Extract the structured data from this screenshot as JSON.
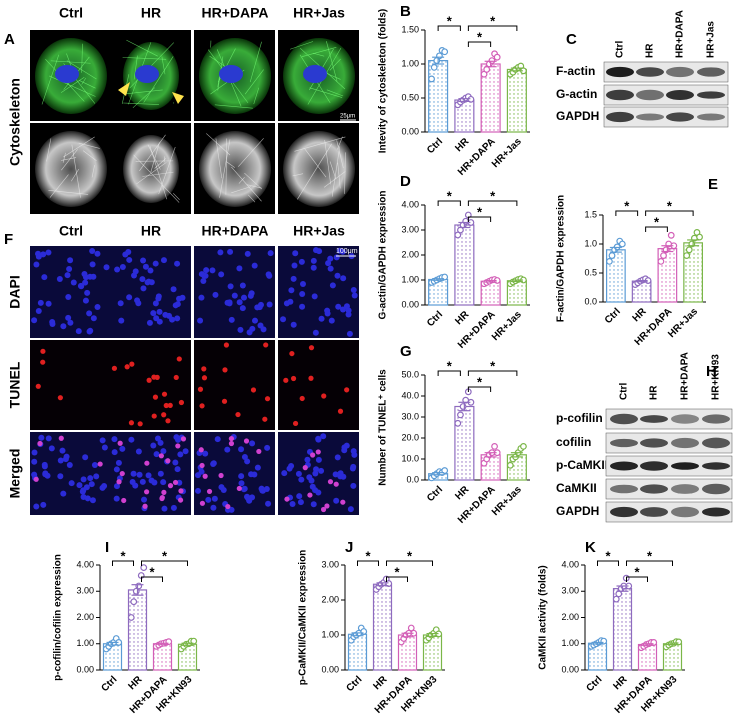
{
  "panel_A": {
    "label": "A",
    "columns": [
      "Ctrl",
      "HR",
      "HR+DAPA",
      "HR+Jas"
    ],
    "row_label": "Cytoskeleton",
    "scale": "25μm"
  },
  "panel_F": {
    "label": "F",
    "columns": [
      "Ctrl",
      "HR",
      "HR+DAPA",
      "HR+Jas"
    ],
    "rows": [
      "DAPI",
      "TUNEL",
      "Merged"
    ],
    "scale": "100μm"
  },
  "panel_C": {
    "label": "C",
    "lanes": [
      "Ctrl",
      "HR",
      "HR+DAPA",
      "HR+Jas"
    ],
    "bands": [
      "F-actin",
      "G-actin",
      "GAPDH"
    ]
  },
  "panel_H": {
    "label": "H",
    "lanes": [
      "Ctrl",
      "HR",
      "HR+DAPA",
      "HR+KN93"
    ],
    "bands": [
      "p-cofilin",
      "cofilin",
      "p-CaMKII",
      "CaMKII",
      "GAPDH"
    ]
  },
  "chart_data": [
    {
      "type": "bar",
      "panel": "B",
      "ylabel": "Intevity of cytoskeleton (folds)",
      "categories": [
        "Ctrl",
        "HR",
        "HR+DAPA",
        "HR+Jas"
      ],
      "colors": [
        "#5b9bd5",
        "#8e6bbf",
        "#d35fb7",
        "#7ab648"
      ],
      "values": [
        1.05,
        0.47,
        1.0,
        0.92
      ],
      "errors": [
        0.05,
        0.02,
        0.04,
        0.02
      ],
      "points": [
        [
          0.78,
          0.95,
          1.05,
          1.12,
          1.2,
          1.18
        ],
        [
          0.4,
          0.44,
          0.47,
          0.5,
          0.52,
          0.48
        ],
        [
          0.85,
          0.92,
          1.0,
          1.05,
          1.15,
          1.1
        ],
        [
          0.85,
          0.88,
          0.92,
          0.95,
          0.97,
          0.9
        ]
      ],
      "ylim": [
        0,
        1.5
      ],
      "yticks": [
        {
          "value": 0,
          "label": "0.00"
        },
        {
          "value": 0.5,
          "label": "0.50"
        },
        {
          "value": 1,
          "label": "1.00"
        },
        {
          "value": 1.5,
          "label": "1.50"
        }
      ],
      "significance": [
        "*",
        "*",
        "*"
      ]
    },
    {
      "type": "bar",
      "panel": "D",
      "ylabel": "G-actin/GAPDH expression",
      "categories": [
        "Ctrl",
        "HR",
        "HR+DAPA",
        "HR+Jas"
      ],
      "colors": [
        "#5b9bd5",
        "#8e6bbf",
        "#d35fb7",
        "#7ab648"
      ],
      "values": [
        1.02,
        3.2,
        0.95,
        0.97
      ],
      "errors": [
        0.03,
        0.1,
        0.03,
        0.03
      ],
      "points": [
        [
          0.9,
          0.95,
          1.0,
          1.05,
          1.1,
          1.12
        ],
        [
          2.8,
          3.0,
          3.2,
          3.35,
          3.6,
          3.3
        ],
        [
          0.85,
          0.9,
          0.95,
          1.0,
          1.02,
          0.98
        ],
        [
          0.85,
          0.92,
          0.97,
          1.02,
          1.05,
          1.0
        ]
      ],
      "ylim": [
        0,
        4
      ],
      "yticks": [
        {
          "value": 0,
          "label": "0.00"
        },
        {
          "value": 1,
          "label": "1.00"
        },
        {
          "value": 2,
          "label": "2.00"
        },
        {
          "value": 3,
          "label": "3.00"
        },
        {
          "value": 4,
          "label": "4.00"
        }
      ],
      "significance": [
        "*",
        "*",
        "*"
      ]
    },
    {
      "type": "bar",
      "panel": "E",
      "ylabel": "F-actin/GAPDH expression",
      "categories": [
        "Ctrl",
        "HR",
        "HR+DAPA",
        "HR+Jas"
      ],
      "colors": [
        "#5b9bd5",
        "#8e6bbf",
        "#d35fb7",
        "#7ab648"
      ],
      "values": [
        0.9,
        0.36,
        0.92,
        1.02
      ],
      "errors": [
        0.04,
        0.01,
        0.05,
        0.05
      ],
      "points": [
        [
          0.7,
          0.8,
          0.9,
          0.95,
          1.05,
          1.0
        ],
        [
          0.3,
          0.33,
          0.36,
          0.38,
          0.4,
          0.37
        ],
        [
          0.7,
          0.8,
          0.9,
          1.0,
          1.15,
          0.97
        ],
        [
          0.8,
          0.9,
          1.0,
          1.1,
          1.2,
          1.12
        ]
      ],
      "ylim": [
        0,
        1.5
      ],
      "yticks": [
        {
          "value": 0,
          "label": "0.0"
        },
        {
          "value": 0.5,
          "label": "0.5"
        },
        {
          "value": 1,
          "label": "1.0"
        },
        {
          "value": 1.5,
          "label": "1.5"
        }
      ],
      "significance": [
        "*",
        "*",
        "*"
      ]
    },
    {
      "type": "bar",
      "panel": "G",
      "ylabel": "Number of TUNEL⁺ cells",
      "categories": [
        "Ctrl",
        "HR",
        "HR+DAPA",
        "HR+Jas"
      ],
      "colors": [
        "#5b9bd5",
        "#8e6bbf",
        "#d35fb7",
        "#7ab648"
      ],
      "values": [
        3,
        35,
        12,
        12
      ],
      "errors": [
        0.5,
        2,
        1,
        1
      ],
      "points": [
        [
          1,
          2,
          3,
          4,
          3.5,
          4.5
        ],
        [
          27,
          31,
          35,
          38,
          42,
          37
        ],
        [
          8,
          10,
          12,
          13,
          16,
          13
        ],
        [
          7,
          10,
          11,
          13,
          15,
          16
        ]
      ],
      "ylim": [
        0,
        50
      ],
      "yticks": [
        {
          "value": 0,
          "label": "0.0"
        },
        {
          "value": 10,
          "label": "10.0"
        },
        {
          "value": 20,
          "label": "20.0"
        },
        {
          "value": 30,
          "label": "30.0"
        },
        {
          "value": 40,
          "label": "40.0"
        },
        {
          "value": 50,
          "label": "50.0"
        }
      ],
      "significance": [
        "*",
        "*",
        "*"
      ]
    },
    {
      "type": "bar",
      "panel": "I",
      "ylabel": "p-cofilin/cofilin expression",
      "categories": [
        "Ctrl",
        "HR",
        "HR+DAPA",
        "HR+KN93"
      ],
      "colors": [
        "#5b9bd5",
        "#8e6bbf",
        "#d35fb7",
        "#7ab648"
      ],
      "values": [
        1.0,
        3.05,
        1.0,
        0.98
      ],
      "errors": [
        0.05,
        0.2,
        0.02,
        0.04
      ],
      "points": [
        [
          0.8,
          0.9,
          1.0,
          1.05,
          1.2,
          1.05
        ],
        [
          2.0,
          2.6,
          3.0,
          3.2,
          3.6,
          3.9
        ],
        [
          0.9,
          0.95,
          1.0,
          1.02,
          1.05,
          1.08
        ],
        [
          0.8,
          0.9,
          0.98,
          1.0,
          1.1,
          1.1
        ]
      ],
      "ylim": [
        0,
        4
      ],
      "yticks": [
        {
          "value": 0,
          "label": "0.00"
        },
        {
          "value": 1,
          "label": "1.00"
        },
        {
          "value": 2,
          "label": "2.00"
        },
        {
          "value": 3,
          "label": "3.00"
        },
        {
          "value": 4,
          "label": "4.00"
        }
      ],
      "significance": [
        "*",
        "*",
        "*"
      ]
    },
    {
      "type": "bar",
      "panel": "J",
      "ylabel": "p-CaMKII/CaMKII expression",
      "categories": [
        "Ctrl",
        "HR",
        "HR+DAPA",
        "HR+KN93"
      ],
      "colors": [
        "#5b9bd5",
        "#8e6bbf",
        "#d35fb7",
        "#7ab648"
      ],
      "values": [
        1.02,
        2.45,
        1.0,
        1.0
      ],
      "errors": [
        0.04,
        0.04,
        0.05,
        0.04
      ],
      "points": [
        [
          0.85,
          0.95,
          1.0,
          1.05,
          1.2,
          1.1
        ],
        [
          2.3,
          2.38,
          2.45,
          2.5,
          2.6,
          2.47
        ],
        [
          0.8,
          0.9,
          1.0,
          1.05,
          1.2,
          1.05
        ],
        [
          0.85,
          0.92,
          1.0,
          1.05,
          1.15,
          1.03
        ]
      ],
      "ylim": [
        0,
        3
      ],
      "yticks": [
        {
          "value": 0,
          "label": "0.00"
        },
        {
          "value": 1,
          "label": "1.00"
        },
        {
          "value": 2,
          "label": "2.00"
        },
        {
          "value": 3,
          "label": "3.00"
        }
      ],
      "significance": [
        "*",
        "*",
        "*"
      ]
    },
    {
      "type": "bar",
      "panel": "K",
      "ylabel": "CaMKII activity (folds)",
      "categories": [
        "Ctrl",
        "HR",
        "HR+DAPA",
        "HR+KN93"
      ],
      "colors": [
        "#5b9bd5",
        "#8e6bbf",
        "#d35fb7",
        "#7ab648"
      ],
      "values": [
        1.02,
        3.1,
        0.97,
        1.0
      ],
      "errors": [
        0.03,
        0.1,
        0.03,
        0.03
      ],
      "points": [
        [
          0.9,
          0.95,
          1.0,
          1.05,
          1.12,
          1.1
        ],
        [
          2.7,
          2.9,
          3.1,
          3.2,
          3.5,
          3.2
        ],
        [
          0.85,
          0.9,
          0.97,
          1.0,
          1.05,
          1.05
        ],
        [
          0.88,
          0.95,
          1.0,
          1.02,
          1.08,
          1.07
        ]
      ],
      "ylim": [
        0,
        4
      ],
      "yticks": [
        {
          "value": 0,
          "label": "0.00"
        },
        {
          "value": 1,
          "label": "1.00"
        },
        {
          "value": 2,
          "label": "2.00"
        },
        {
          "value": 3,
          "label": "3.00"
        },
        {
          "value": 4,
          "label": "4.00"
        }
      ],
      "significance": [
        "*",
        "*",
        "*"
      ]
    }
  ]
}
